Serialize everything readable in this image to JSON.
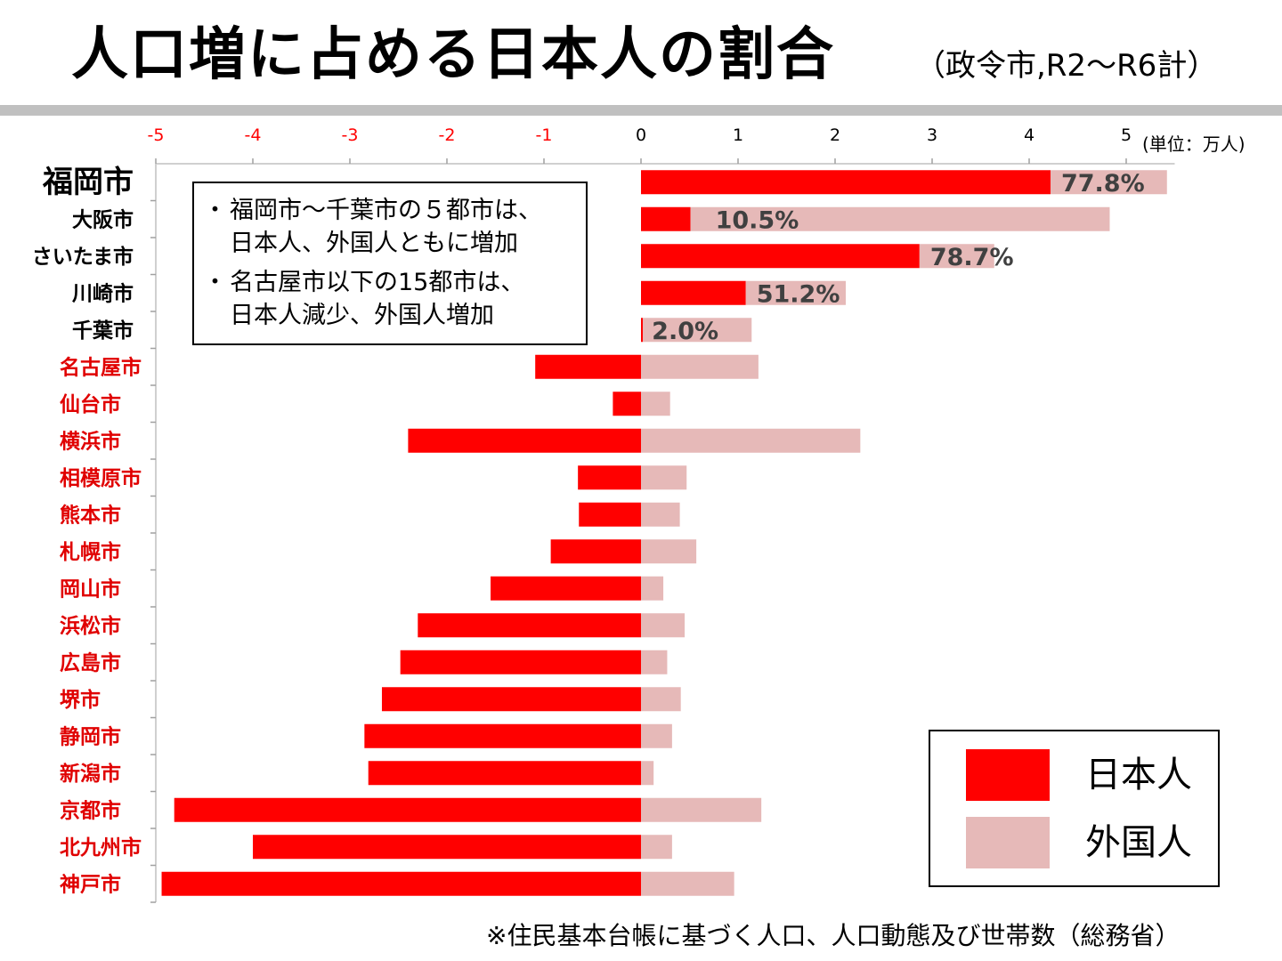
{
  "header": {
    "title": "人口増に占める日本人の割合",
    "subtitle": "（政令市,R2～R6計）"
  },
  "note": {
    "bullet": "・",
    "items": [
      "福岡市～千葉市の５都市は、\n日本人、外国人ともに増加",
      "名古屋市以下の15都市は、\n日本人減少、外国人増加"
    ]
  },
  "legend": {
    "japanese": "日本人",
    "foreign": "外国人"
  },
  "footnote": "※住民基本台帳に基づく人口、人口動態及び世帯数（総務省）",
  "colors": {
    "japanese": "#ff0000",
    "foreign": "#e6b9b8",
    "decrease_label": "#e00000",
    "axis": "#d0d0d0"
  },
  "chart_data": {
    "type": "bar",
    "orientation": "horizontal",
    "stacked": true,
    "unit_label": "(単位：万人)",
    "xlim": [
      -5,
      5
    ],
    "xticks": [
      {
        "value": -5,
        "label": "-5"
      },
      {
        "value": -4,
        "label": "-4"
      },
      {
        "value": -3,
        "label": "-3"
      },
      {
        "value": -2,
        "label": "-2"
      },
      {
        "value": -1,
        "label": "-1"
      },
      {
        "value": 0,
        "label": "0"
      },
      {
        "value": 1,
        "label": "1"
      },
      {
        "value": 2,
        "label": "2"
      },
      {
        "value": 3,
        "label": "3"
      },
      {
        "value": 4,
        "label": "4"
      },
      {
        "value": 5,
        "label": "5"
      }
    ],
    "categories": [
      "福岡市",
      "大阪市",
      "さいたま市",
      "川崎市",
      "千葉市",
      "名古屋市",
      "仙台市",
      "横浜市",
      "相模原市",
      "熊本市",
      "札幌市",
      "岡山市",
      "浜松市",
      "広島市",
      "堺市",
      "静岡市",
      "新潟市",
      "京都市",
      "北九州市",
      "神戸市"
    ],
    "decrease_categories": [
      "名古屋市",
      "仙台市",
      "横浜市",
      "相模原市",
      "熊本市",
      "札幌市",
      "岡山市",
      "浜松市",
      "広島市",
      "堺市",
      "静岡市",
      "新潟市",
      "京都市",
      "北九州市",
      "神戸市"
    ],
    "emphasized_category": "福岡市",
    "series": [
      {
        "name": "日本人",
        "values": [
          4.22,
          0.51,
          2.87,
          1.08,
          0.02,
          -1.09,
          -0.29,
          -2.4,
          -0.65,
          -0.64,
          -0.93,
          -1.55,
          -2.3,
          -2.48,
          -2.67,
          -2.85,
          -2.81,
          -4.81,
          -4.0,
          -4.94
        ]
      },
      {
        "name": "外国人",
        "values": [
          1.2,
          4.32,
          0.77,
          1.03,
          1.12,
          1.21,
          0.3,
          2.26,
          0.47,
          0.4,
          0.57,
          0.23,
          0.45,
          0.27,
          0.41,
          0.32,
          0.13,
          1.24,
          0.32,
          0.96
        ]
      }
    ],
    "share_labels": [
      "77.8%",
      "10.5%",
      "78.7%",
      "51.2%",
      "2.0%",
      "",
      "",
      "",
      "",
      "",
      "",
      "",
      "",
      "",
      "",
      "",
      "",
      "",
      "",
      ""
    ]
  }
}
